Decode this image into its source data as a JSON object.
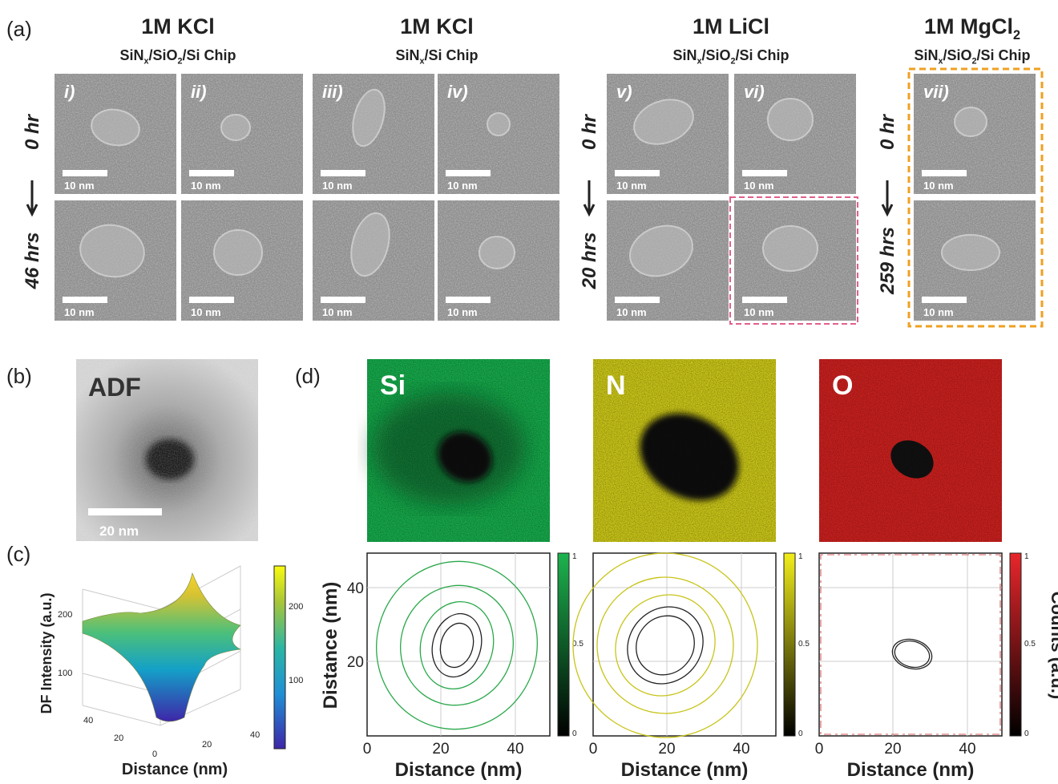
{
  "panel_a": {
    "label": "(a)",
    "scale_bar": "10 nm",
    "groups": [
      {
        "title": [
          {
            "text": "1M KCl"
          }
        ],
        "chip": [
          {
            "text": "SiN"
          },
          {
            "sub": "x"
          },
          {
            "text": "/SiO"
          },
          {
            "sub": "2"
          },
          {
            "text": "/Si Chip"
          }
        ],
        "images": [
          "i)",
          "ii)"
        ]
      },
      {
        "title": [
          {
            "text": "1M KCl"
          }
        ],
        "chip": [
          {
            "text": "SiN"
          },
          {
            "sub": "x"
          },
          {
            "text": "/Si Chip"
          }
        ],
        "images": [
          "iii)",
          "iv)"
        ]
      },
      {
        "title": [
          {
            "text": "1M LiCl"
          }
        ],
        "chip": [
          {
            "text": "SiN"
          },
          {
            "sub": "x"
          },
          {
            "text": "/SiO"
          },
          {
            "sub": "2"
          },
          {
            "text": "/Si Chip"
          }
        ],
        "images": [
          "v)",
          "vi)"
        ]
      },
      {
        "title": [
          {
            "text": "1M MgCl"
          },
          {
            "sub": "2"
          }
        ],
        "chip": [
          {
            "text": "SiN"
          },
          {
            "sub": "x"
          },
          {
            "text": "/SiO"
          },
          {
            "sub": "2"
          },
          {
            "text": "/Si Chip"
          }
        ],
        "images": [
          "vii)"
        ]
      }
    ],
    "row_labels": [
      {
        "top": "0 hr",
        "bottom": "46 hrs"
      },
      {
        "top": "0 hr",
        "bottom": "20 hrs"
      },
      {
        "top": "0 hr",
        "bottom": "259 hrs"
      }
    ]
  },
  "panel_b": {
    "label": "(b)",
    "image_label": "ADF",
    "scale_bar": "20 nm"
  },
  "panel_c": {
    "label": "(c)",
    "z_label": "DF Intensity (a.u.)",
    "x_label": "Distance (nm)",
    "z_ticks": [
      "200",
      "100"
    ],
    "base_ticks": [
      "40",
      "20",
      "0",
      "20",
      "40"
    ],
    "colorbar_ticks": [
      "200",
      "100"
    ]
  },
  "panel_d": {
    "label": "(d)",
    "maps": [
      "Si",
      "N",
      "O"
    ],
    "y_label": "Distance (nm)",
    "x_label": "Distance (nm)",
    "x_ticks": [
      "0",
      "20",
      "40"
    ],
    "y_ticks": [
      "40",
      "20"
    ],
    "colorbar_ticks": [
      "1",
      "0.5",
      "0"
    ],
    "colorbar_label": "Counts (a.u.)"
  }
}
